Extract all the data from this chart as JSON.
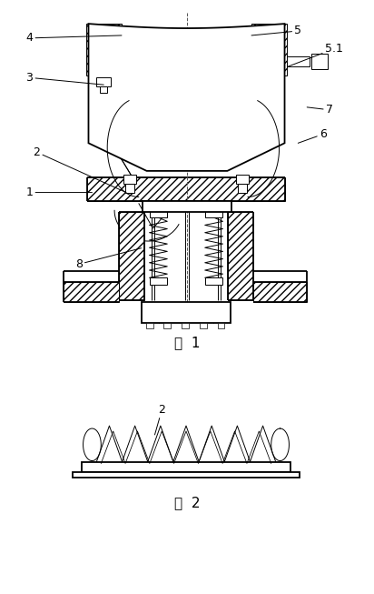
{
  "bg_color": "#ffffff",
  "fig1_caption": "图  1",
  "fig2_caption": "图  2",
  "lw_main": 1.3,
  "lw_thin": 0.7,
  "lw_hair": 0.5
}
